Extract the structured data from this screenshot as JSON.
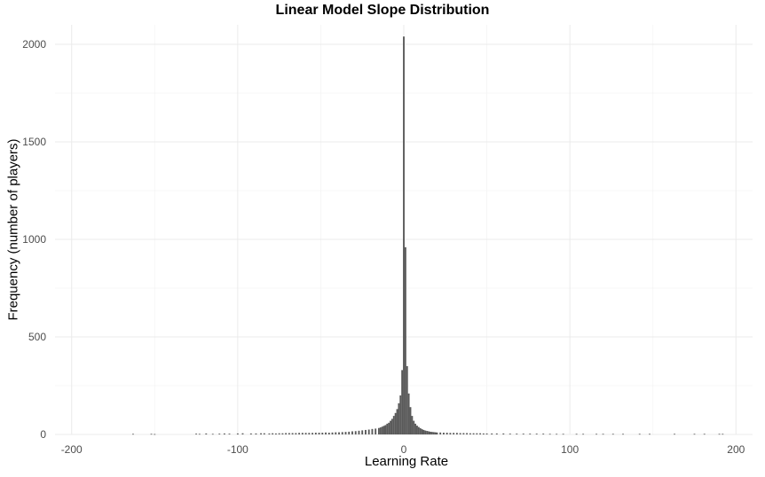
{
  "chart_data": {
    "type": "bar",
    "title": "Linear Model Slope Distribution",
    "xlabel": "Learning Rate",
    "ylabel": "Frequency (number of players)",
    "xlim": [
      -210,
      210
    ],
    "ylim": [
      0,
      2100
    ],
    "x_ticks": [
      -200,
      -100,
      0,
      100,
      200
    ],
    "x_tick_labels": [
      "-200",
      "-100",
      "0",
      "100",
      "200"
    ],
    "y_ticks": [
      0,
      500,
      1000,
      1500,
      2000
    ],
    "y_tick_labels": [
      "0",
      "500",
      "1000",
      "1500",
      "2000"
    ],
    "bin_width": 1,
    "grid": true,
    "bar_color": "#595959",
    "series": [
      {
        "x": [
          -163,
          -152,
          -150,
          -125,
          -123,
          -119,
          -115,
          -111,
          -108,
          -105,
          -100,
          -97,
          -92,
          -89,
          -86,
          -84,
          -81,
          -79,
          -77,
          -75,
          -73,
          -71,
          -69,
          -67,
          -65,
          -63,
          -61,
          -59,
          -57,
          -55,
          -53,
          -51,
          -49,
          -47,
          -45,
          -43,
          -41,
          -39,
          -37,
          -35,
          -33,
          -31,
          -29,
          -27,
          -25,
          -23,
          -21,
          -19,
          -17,
          -15,
          -14,
          -13,
          -12,
          -11,
          -10,
          -9,
          -8,
          -7,
          -6,
          -5,
          -4,
          -3,
          -2,
          -1,
          0,
          1,
          2,
          3,
          4,
          5,
          6,
          7,
          8,
          9,
          10,
          11,
          12,
          13,
          14,
          15,
          16,
          17,
          18,
          19,
          20,
          22,
          24,
          26,
          28,
          30,
          32,
          34,
          36,
          38,
          40,
          42,
          44,
          46,
          48,
          50,
          53,
          56,
          60,
          64,
          68,
          72,
          76,
          80,
          84,
          88,
          92,
          96,
          104,
          108,
          116,
          120,
          126,
          132,
          142,
          148,
          163,
          175,
          181,
          190,
          192
        ],
        "values": [
          3,
          3,
          2,
          4,
          3,
          5,
          3,
          4,
          5,
          4,
          5,
          6,
          5,
          5,
          6,
          6,
          5,
          6,
          5,
          6,
          6,
          7,
          7,
          7,
          7,
          8,
          8,
          8,
          8,
          8,
          9,
          9,
          9,
          10,
          9,
          10,
          11,
          11,
          12,
          13,
          14,
          16,
          17,
          19,
          21,
          23,
          25,
          28,
          30,
          33,
          36,
          40,
          44,
          48,
          55,
          60,
          70,
          80,
          95,
          110,
          130,
          160,
          200,
          330,
          2040,
          960,
          350,
          210,
          140,
          95,
          70,
          55,
          45,
          38,
          32,
          27,
          23,
          20,
          18,
          16,
          14,
          13,
          12,
          11,
          10,
          10,
          9,
          9,
          8,
          8,
          8,
          7,
          7,
          7,
          6,
          6,
          6,
          6,
          5,
          5,
          5,
          5,
          5,
          4,
          4,
          4,
          4,
          4,
          4,
          3,
          3,
          3,
          3,
          3,
          3,
          3,
          3,
          3,
          3,
          3,
          3,
          3,
          3,
          3,
          3
        ]
      }
    ]
  }
}
